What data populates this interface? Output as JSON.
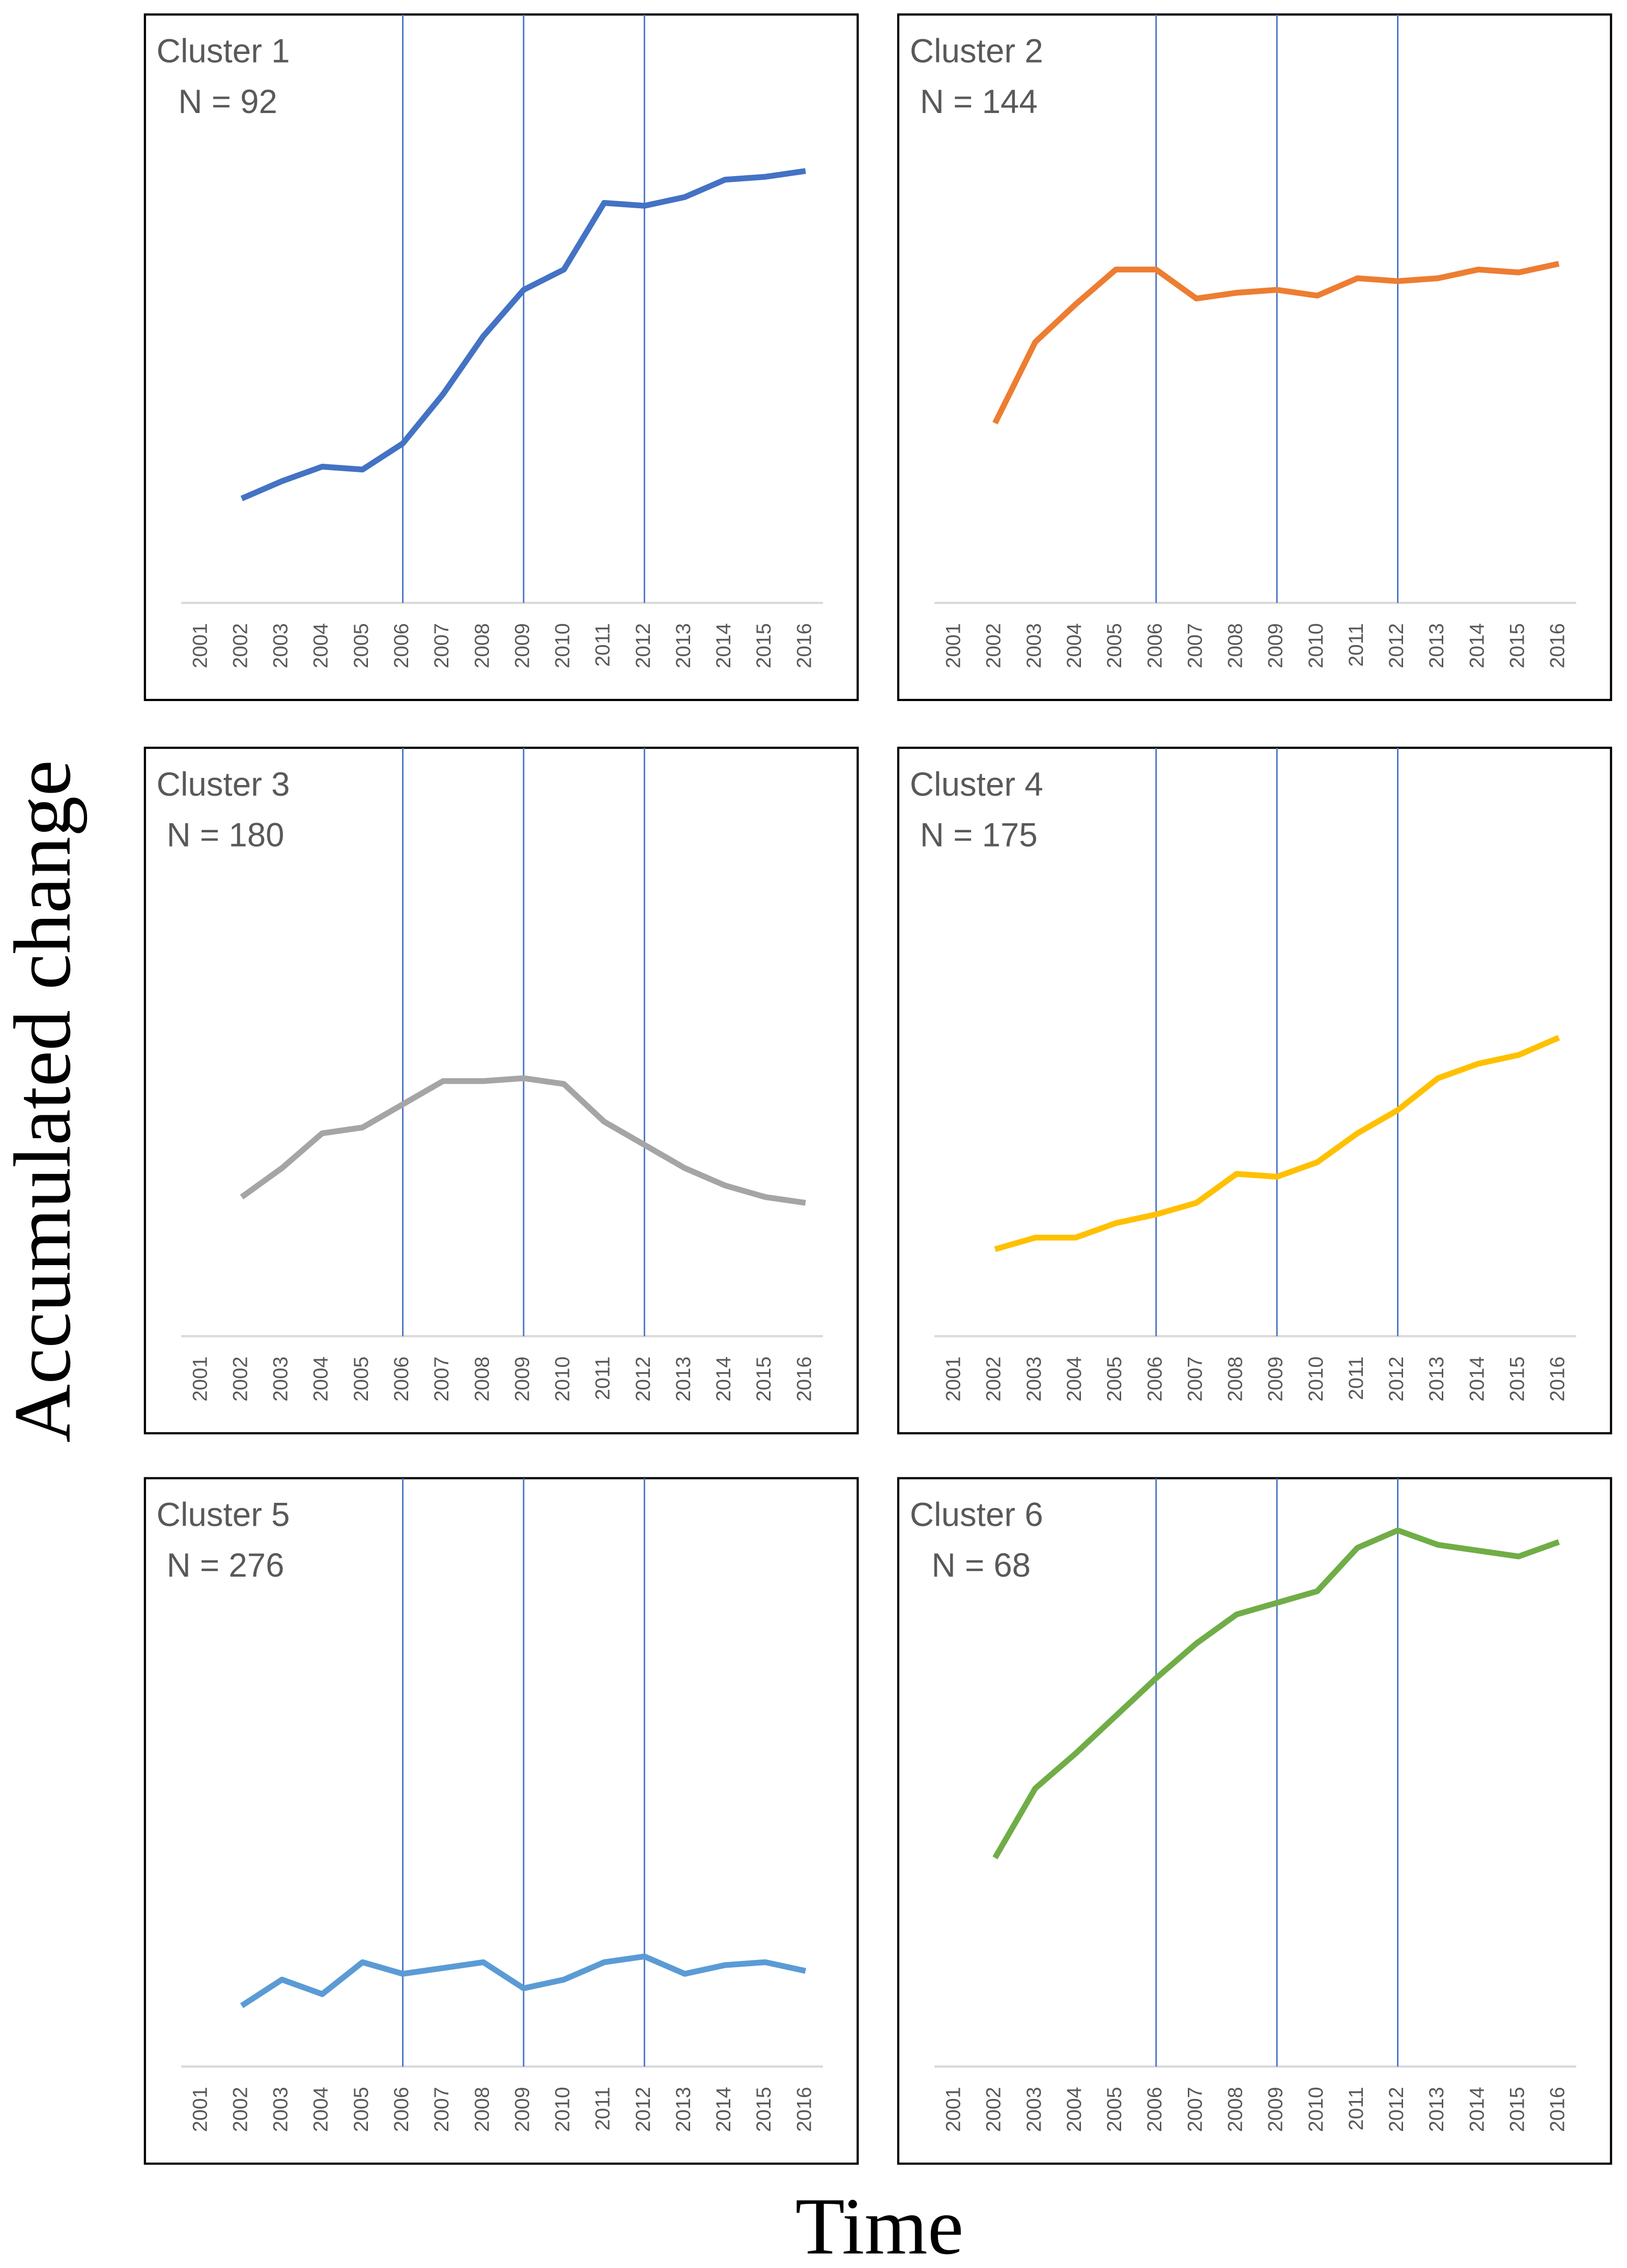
{
  "ylabel": "Accumulated change",
  "xlabel": "Time",
  "chart_data": [
    {
      "type": "line",
      "title": "Cluster 1",
      "subtitle": "N = 92",
      "color": "#4472c4",
      "categories": [
        "2001",
        "2002",
        "2003",
        "2004",
        "2005",
        "2006",
        "2007",
        "2008",
        "2009",
        "2010",
        "2011",
        "2012",
        "2013",
        "2014",
        "2015",
        "2016"
      ],
      "values": [
        null,
        18,
        21,
        23.5,
        23,
        27.5,
        36,
        46,
        54,
        57.5,
        69,
        68.5,
        70,
        73,
        73.5,
        74.5
      ],
      "ylim": [
        0,
        100
      ],
      "reference_lines": [
        "2006",
        "2009",
        "2012"
      ]
    },
    {
      "type": "line",
      "title": "Cluster 2",
      "subtitle": "N = 144",
      "color": "#ed7d31",
      "categories": [
        "2001",
        "2002",
        "2003",
        "2004",
        "2005",
        "2006",
        "2007",
        "2008",
        "2009",
        "2010",
        "2011",
        "2012",
        "2013",
        "2014",
        "2015",
        "2016"
      ],
      "values": [
        null,
        31,
        45,
        51.5,
        57.5,
        57.5,
        52.5,
        53.5,
        54,
        53,
        56,
        55.5,
        56,
        57.5,
        57,
        58.5
      ],
      "ylim": [
        0,
        100
      ],
      "reference_lines": [
        "2006",
        "2009",
        "2012"
      ]
    },
    {
      "type": "line",
      "title": "Cluster 3",
      "subtitle": "N = 180",
      "color": "#a5a5a5",
      "categories": [
        "2001",
        "2002",
        "2003",
        "2004",
        "2005",
        "2006",
        "2007",
        "2008",
        "2009",
        "2010",
        "2011",
        "2012",
        "2013",
        "2014",
        "2015",
        "2016"
      ],
      "values": [
        null,
        24,
        29,
        35,
        36,
        40,
        44,
        44,
        44.5,
        43.5,
        37,
        33,
        29,
        26,
        24,
        23
      ],
      "ylim": [
        0,
        100
      ],
      "reference_lines": [
        "2006",
        "2009",
        "2012"
      ]
    },
    {
      "type": "line",
      "title": "Cluster 4",
      "subtitle": "N = 175",
      "color": "#ffc000",
      "categories": [
        "2001",
        "2002",
        "2003",
        "2004",
        "2005",
        "2006",
        "2007",
        "2008",
        "2009",
        "2010",
        "2011",
        "2012",
        "2013",
        "2014",
        "2015",
        "2016"
      ],
      "values": [
        null,
        15,
        17,
        17,
        19.5,
        21,
        23,
        28,
        27.5,
        30,
        35,
        39,
        44.5,
        47,
        48.5,
        51.5
      ],
      "ylim": [
        0,
        100
      ],
      "reference_lines": [
        "2006",
        "2009",
        "2012"
      ]
    },
    {
      "type": "line",
      "title": "Cluster 5",
      "subtitle": "N = 276",
      "color": "#5b9bd5",
      "categories": [
        "2001",
        "2002",
        "2003",
        "2004",
        "2005",
        "2006",
        "2007",
        "2008",
        "2009",
        "2010",
        "2011",
        "2012",
        "2013",
        "2014",
        "2015",
        "2016"
      ],
      "values": [
        null,
        10.5,
        15,
        12.5,
        18,
        16,
        17,
        18,
        13.5,
        15,
        18,
        19,
        16,
        17.5,
        18,
        16.5
      ],
      "ylim": [
        0,
        100
      ],
      "reference_lines": [
        "2006",
        "2009",
        "2012"
      ]
    },
    {
      "type": "line",
      "title": "Cluster 6",
      "subtitle": "N = 68",
      "color": "#70ad47",
      "categories": [
        "2001",
        "2002",
        "2003",
        "2004",
        "2005",
        "2006",
        "2007",
        "2008",
        "2009",
        "2010",
        "2011",
        "2012",
        "2013",
        "2014",
        "2015",
        "2016"
      ],
      "values": [
        null,
        36,
        48,
        54,
        60.5,
        67,
        73,
        78,
        80,
        82,
        89.5,
        92.5,
        90,
        89,
        88,
        90.5
      ],
      "ylim": [
        0,
        100
      ],
      "reference_lines": [
        "2006",
        "2009",
        "2012"
      ]
    }
  ]
}
